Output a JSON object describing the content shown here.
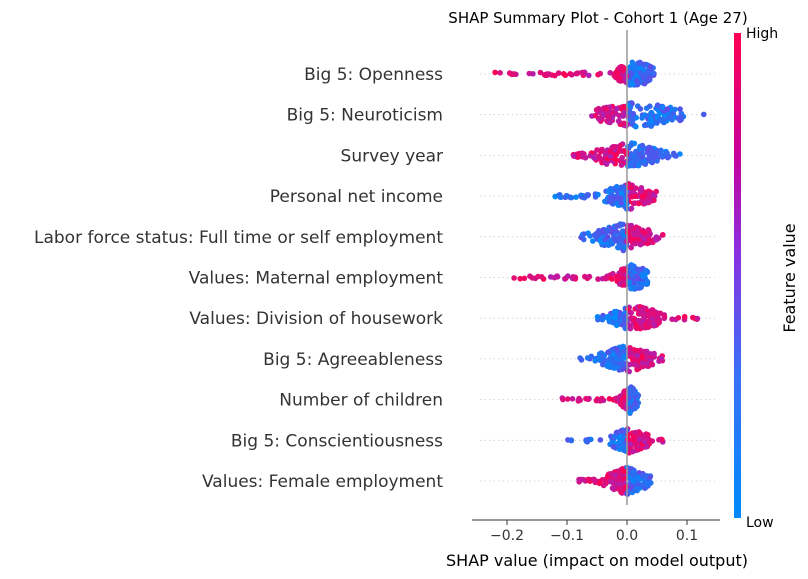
{
  "chart_data": {
    "type": "scatter",
    "subtype": "shap-beeswarm",
    "title": "SHAP Summary Plot - Cohort 1 (Age 27)",
    "xlabel": "SHAP value (impact on model output)",
    "xlim": [
      -0.235,
      0.145
    ],
    "xticks": [
      -0.2,
      -0.1,
      0.0,
      0.1
    ],
    "xtick_labels": [
      "−0.2",
      "−0.1",
      "0.0",
      "0.1"
    ],
    "colorbar": {
      "label": "Feature value",
      "high": "High",
      "low": "Low",
      "high_color": "#ff0052",
      "low_color": "#008bfb"
    },
    "features": [
      {
        "name": "Big 5: Openness",
        "min": -0.22,
        "max": 0.06,
        "neg_color": "high",
        "pos_color": "low",
        "core": [
          -0.02,
          0.05
        ]
      },
      {
        "name": "Big 5: Neuroticism",
        "min": -0.06,
        "max": 0.13,
        "neg_color": "high",
        "pos_color": "low",
        "core": [
          -0.06,
          0.1
        ]
      },
      {
        "name": "Survey year",
        "min": -0.09,
        "max": 0.09,
        "neg_color": "high",
        "pos_color": "low",
        "core": [
          -0.06,
          0.06
        ]
      },
      {
        "name": "Personal net income",
        "min": -0.12,
        "max": 0.05,
        "neg_color": "low",
        "pos_color": "high",
        "core": [
          -0.04,
          0.05
        ]
      },
      {
        "name": "Labor force status: Full time or self employment",
        "min": -0.08,
        "max": 0.06,
        "neg_color": "low",
        "pos_color": "high",
        "core": [
          -0.06,
          0.05
        ]
      },
      {
        "name": "Values: Maternal employment",
        "min": -0.19,
        "max": 0.04,
        "neg_color": "high",
        "pos_color": "low",
        "core": [
          -0.02,
          0.04
        ]
      },
      {
        "name": "Values: Division of housework",
        "min": -0.05,
        "max": 0.12,
        "neg_color": "low",
        "pos_color": "high",
        "core": [
          -0.03,
          0.06
        ]
      },
      {
        "name": "Big 5: Agreeableness",
        "min": -0.08,
        "max": 0.06,
        "neg_color": "low",
        "pos_color": "high",
        "core": [
          -0.05,
          0.05
        ]
      },
      {
        "name": "Number of children",
        "min": -0.11,
        "max": 0.02,
        "neg_color": "high",
        "pos_color": "low",
        "core": [
          -0.01,
          0.02
        ]
      },
      {
        "name": "Big 5: Conscientiousness",
        "min": -0.1,
        "max": 0.06,
        "neg_color": "low",
        "pos_color": "high",
        "core": [
          -0.03,
          0.04
        ]
      },
      {
        "name": "Values: Female employment",
        "min": -0.08,
        "max": 0.04,
        "neg_color": "high",
        "pos_color": "low",
        "core": [
          -0.04,
          0.04
        ]
      }
    ]
  }
}
